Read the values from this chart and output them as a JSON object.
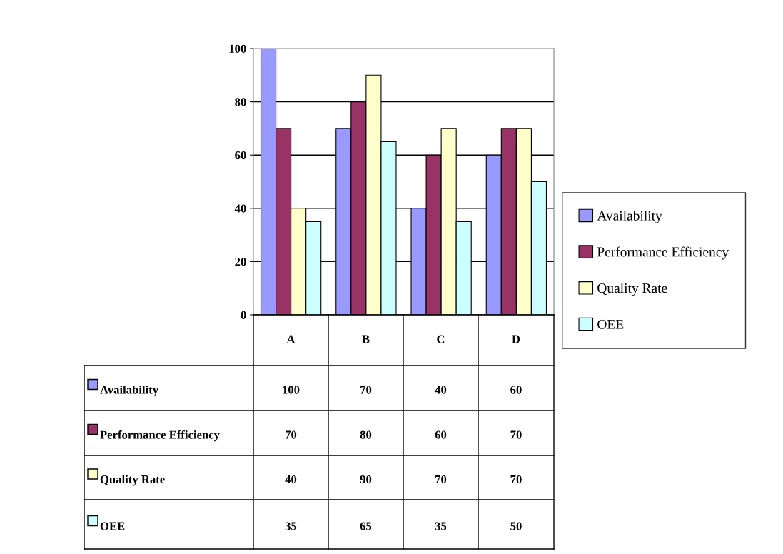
{
  "chart_data": {
    "type": "bar",
    "categories": [
      "A",
      "B",
      "C",
      "D"
    ],
    "series": [
      {
        "name": "Availability",
        "color": "#9999ff",
        "values": [
          100,
          70,
          40,
          60
        ]
      },
      {
        "name": "Performance Efficiency",
        "color": "#993366",
        "values": [
          70,
          80,
          60,
          70
        ]
      },
      {
        "name": "Quality Rate",
        "color": "#ffffcc",
        "values": [
          40,
          90,
          70,
          70
        ]
      },
      {
        "name": "OEE",
        "color": "#ccffff",
        "values": [
          35,
          65,
          35,
          50
        ]
      }
    ],
    "ylim": [
      0,
      100
    ],
    "yticks": [
      0,
      20,
      40,
      60,
      80,
      100
    ],
    "grid": "y",
    "legend": "right",
    "data_labels": true
  }
}
